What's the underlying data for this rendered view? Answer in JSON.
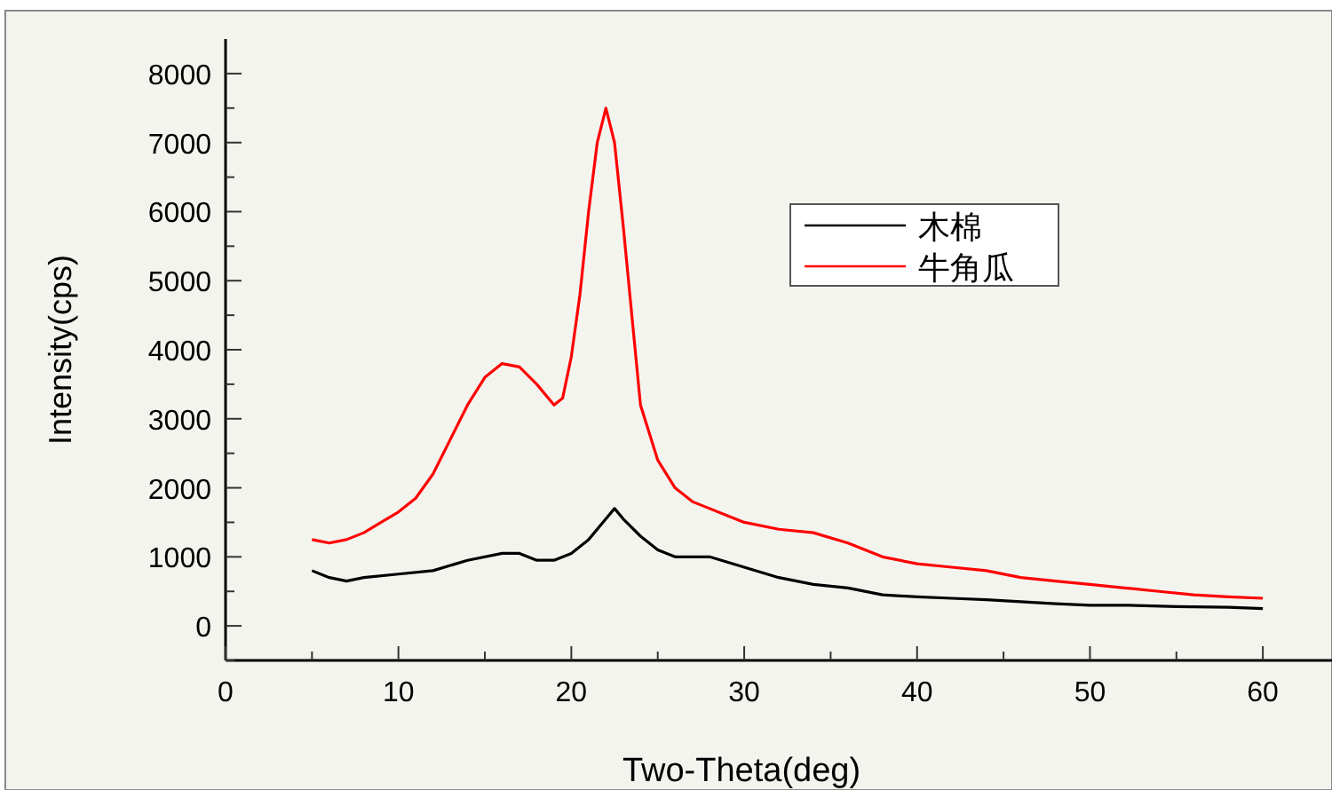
{
  "chart_data": {
    "type": "line",
    "xlabel": "Two-Theta(deg)",
    "ylabel": "Intensity(cps)",
    "xlim": [
      0,
      64
    ],
    "ylim": [
      -500,
      8500
    ],
    "xticks": [
      0,
      {
        "value": 5,
        "label": null
      },
      10,
      {
        "value": 15,
        "label": null
      },
      20,
      {
        "value": 25,
        "label": null
      },
      30,
      {
        "value": 35,
        "label": null
      },
      40,
      {
        "value": 45,
        "label": null
      },
      50,
      {
        "value": 55,
        "label": null
      },
      60
    ],
    "yticks": [
      {
        "value": -500,
        "label": null
      },
      0,
      {
        "value": 500,
        "label": null
      },
      1000,
      {
        "value": 1500,
        "label": null
      },
      2000,
      {
        "value": 2500,
        "label": null
      },
      3000,
      {
        "value": 3500,
        "label": null
      },
      4000,
      {
        "value": 4500,
        "label": null
      },
      5000,
      {
        "value": 5500,
        "label": null
      },
      6000,
      {
        "value": 6500,
        "label": null
      },
      7000,
      {
        "value": 7500,
        "label": null
      },
      8000
    ],
    "legend": "top right",
    "series": [
      {
        "name": "木棉",
        "color": "#000000",
        "x": [
          5,
          6,
          7,
          8,
          10,
          12,
          14,
          16,
          17,
          18,
          19,
          20,
          21,
          22,
          22.5,
          23,
          24,
          25,
          26,
          27,
          28,
          30,
          32,
          34,
          36,
          38,
          40,
          42,
          44,
          46,
          48,
          50,
          52,
          55,
          58,
          60
        ],
        "values": [
          800,
          700,
          650,
          700,
          750,
          800,
          950,
          1050,
          1050,
          950,
          950,
          1050,
          1250,
          1550,
          1700,
          1550,
          1300,
          1100,
          1000,
          1000,
          1000,
          850,
          700,
          600,
          550,
          450,
          420,
          400,
          380,
          350,
          320,
          300,
          300,
          280,
          270,
          250
        ]
      },
      {
        "name": "牛角瓜",
        "color": "#ff0000",
        "x": [
          5,
          6,
          7,
          8,
          9,
          10,
          11,
          12,
          13,
          14,
          15,
          16,
          17,
          18,
          19,
          19.5,
          20,
          20.5,
          21,
          21.5,
          22,
          22.5,
          23,
          23.5,
          24,
          25,
          26,
          27,
          28,
          29,
          30,
          32,
          34,
          36,
          38,
          40,
          42,
          44,
          46,
          48,
          50,
          52,
          54,
          56,
          58,
          60
        ],
        "values": [
          1250,
          1200,
          1250,
          1350,
          1500,
          1650,
          1850,
          2200,
          2700,
          3200,
          3600,
          3800,
          3750,
          3500,
          3200,
          3300,
          3900,
          4800,
          6000,
          7000,
          7500,
          7000,
          5800,
          4500,
          3200,
          2400,
          2000,
          1800,
          1700,
          1600,
          1500,
          1400,
          1350,
          1200,
          1000,
          900,
          850,
          800,
          700,
          650,
          600,
          550,
          500,
          450,
          420,
          400
        ]
      }
    ]
  }
}
